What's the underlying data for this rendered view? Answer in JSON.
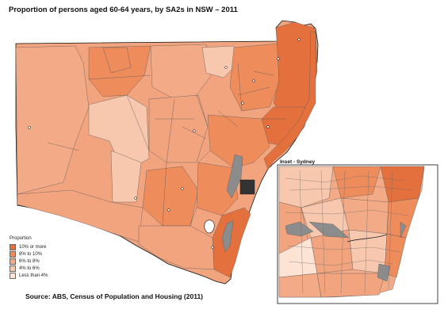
{
  "title": "Proportion of persons aged 60-64 years, by SA2s in NSW – 2011",
  "inset_title": "Inset - Sydney",
  "legend": {
    "title": "Proportion",
    "items": [
      {
        "label": "10% or more",
        "color": "#e4703d"
      },
      {
        "label": "8% to 10%",
        "color": "#ee8c5c"
      },
      {
        "label": "6% to 8%",
        "color": "#f3a983"
      },
      {
        "label": "4% to 6%",
        "color": "#f8c8ae"
      },
      {
        "label": "Less than 4%",
        "color": "#fce3d4"
      }
    ]
  },
  "source": "Source:  ABS, Census of Population and Housing (2011)",
  "colors": {
    "no_data": "#8c8c8c",
    "boundary": "#5a5a5a",
    "outline": "#111111"
  }
}
